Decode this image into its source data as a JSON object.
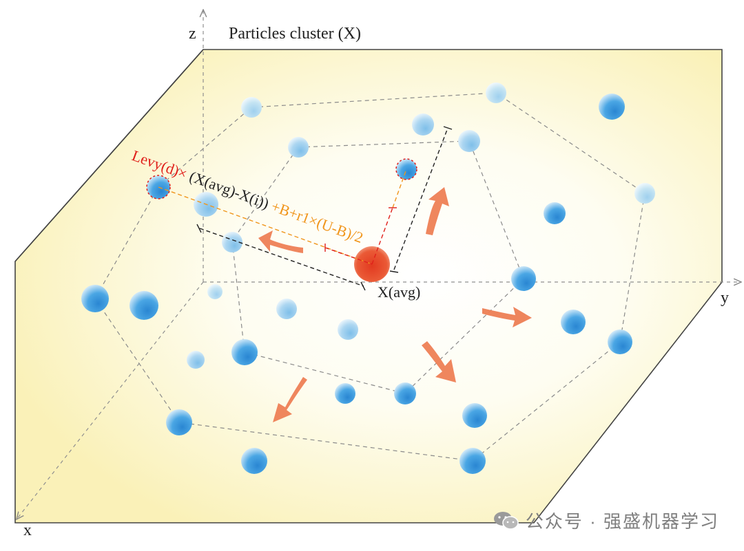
{
  "title": "Particles cluster (X)",
  "axes": {
    "z": "z",
    "y": "y",
    "x": "x"
  },
  "formula": {
    "part_levy": "Levy(d)×",
    "part_diff": "(X(avg)-X(i))",
    "part_rest": "+B+r1×(U-B)/2"
  },
  "center_label": "X(avg)",
  "watermark": "公众号 · 强盛机器学习",
  "watermark_icon": "wechat-icon",
  "colors": {
    "particle": "#3f9fdf",
    "particle_light": "#b9dcf3",
    "center_particle": "#e2452a",
    "arrow": "#ee7f55",
    "background": "#fbf6c8",
    "levy_text": "#e0201b",
    "orange_text": "#f0961c",
    "black_text": "#222222"
  }
}
